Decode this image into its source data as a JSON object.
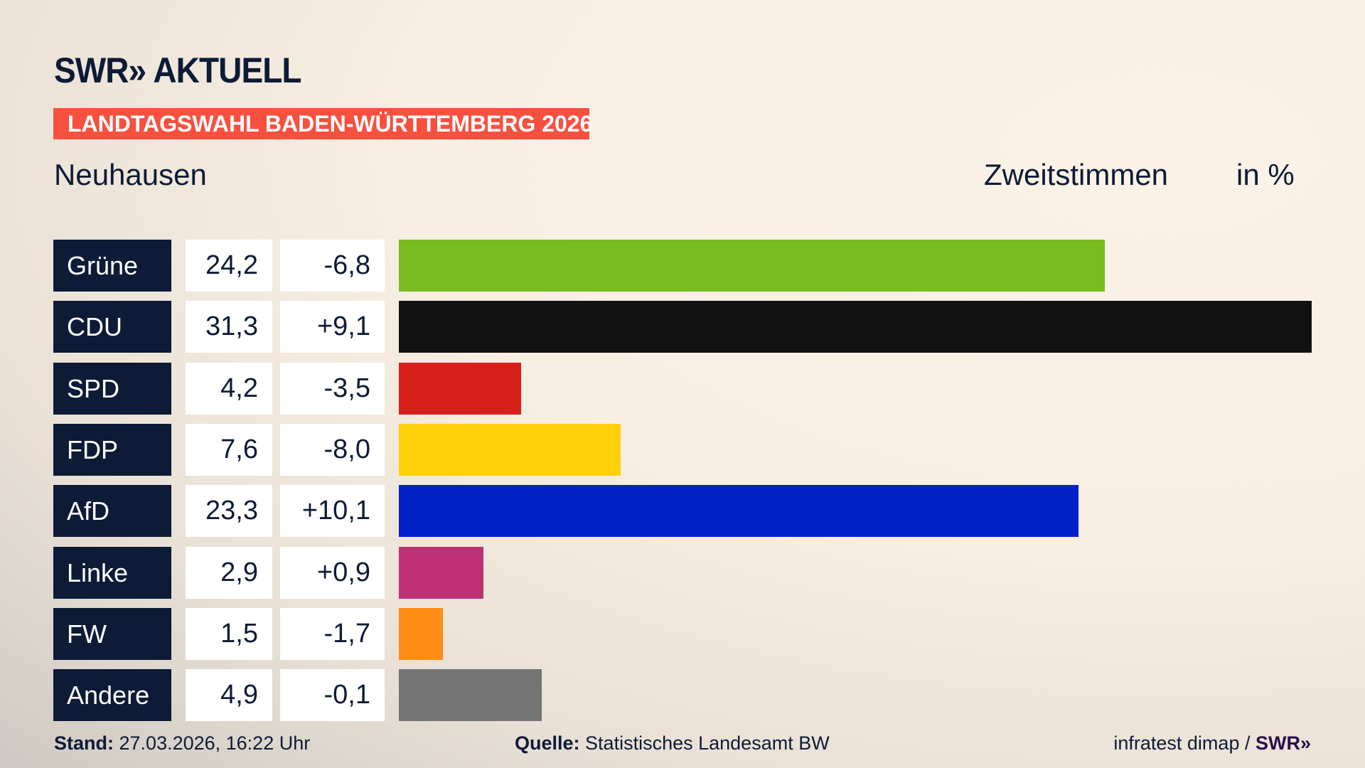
{
  "header": {
    "logo": "SWR» AKTUELL",
    "banner": "LANDTAGSWAHL BADEN-WÜRTTEMBERG 2026",
    "place": "Neuhausen",
    "metric": "Zweitstimmen",
    "unit": "in %"
  },
  "chart_data": {
    "type": "bar",
    "orientation": "horizontal",
    "xlim": [
      0,
      31.3
    ],
    "categories": [
      "Grüne",
      "CDU",
      "SPD",
      "FDP",
      "AfD",
      "Linke",
      "FW",
      "Andere"
    ],
    "values": [
      24.2,
      31.3,
      4.2,
      7.6,
      23.3,
      2.9,
      1.5,
      4.9
    ],
    "value_labels": [
      "24,2",
      "31,3",
      "4,2",
      "7,6",
      "23,3",
      "2,9",
      "1,5",
      "4,9"
    ],
    "diff_labels": [
      "-6,8",
      "+9,1",
      "-3,5",
      "-8,0",
      "+10,1",
      "+0,9",
      "-1,7",
      "-0,1"
    ],
    "colors": [
      "#78bc1e",
      "#121212",
      "#d7201c",
      "#ffcf09",
      "#0021c8",
      "#be3075",
      "#ff8c15",
      "#737373"
    ]
  },
  "footer": {
    "stand_label": "Stand:",
    "stand_value": "27.03.2026, 16:22 Uhr",
    "source_label": "Quelle:",
    "source_value": "Statistisches Landesamt BW",
    "credit": "infratest dimap /",
    "credit_logo": "SWR»"
  }
}
